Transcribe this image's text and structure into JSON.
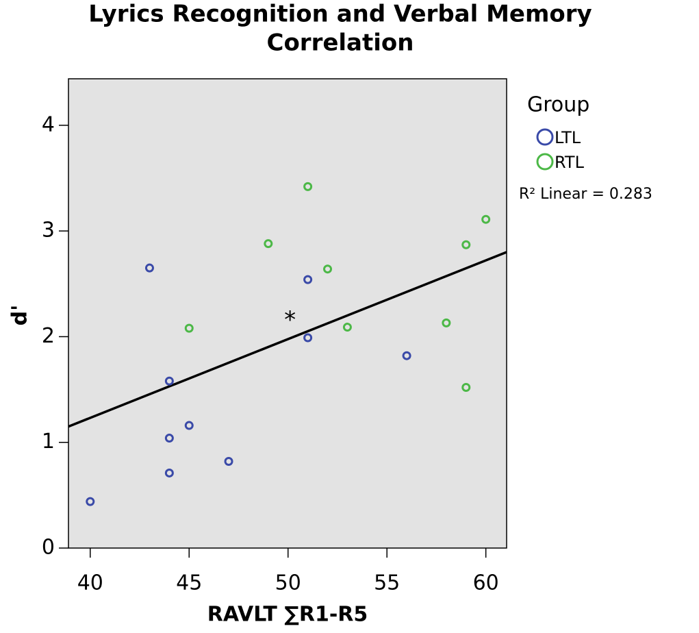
{
  "chart_data": {
    "type": "scatter",
    "title": [
      "Lyrics Recognition and Verbal Memory",
      "Correlation"
    ],
    "x_label": "RAVLT ∑R1-R5",
    "y_label": "d'",
    "xlim": [
      38.9,
      61.05
    ],
    "xticks": [
      40,
      45,
      50,
      55,
      60
    ],
    "ylim": [
      0,
      4.44
    ],
    "yticks": [
      0,
      1,
      2,
      3,
      4
    ],
    "legend_title": "Group",
    "series": [
      {
        "name": "LTL",
        "color": "#3a4aa8",
        "x": [
          40,
          43,
          44,
          44,
          44,
          45,
          47,
          51,
          51,
          56
        ],
        "values": [
          0.44,
          2.65,
          1.58,
          1.04,
          0.71,
          1.16,
          0.82,
          2.54,
          1.99,
          1.82
        ]
      },
      {
        "name": "RTL",
        "color": "#4cb847",
        "x": [
          45,
          49,
          51,
          52,
          53,
          58,
          59,
          59,
          60
        ],
        "values": [
          2.08,
          2.88,
          3.42,
          2.64,
          2.09,
          2.13,
          2.87,
          1.52,
          3.11
        ]
      }
    ],
    "fit_line": {
      "x": [
        38.9,
        61.05
      ],
      "y": [
        1.15,
        2.8
      ],
      "color": "#000000"
    },
    "fit_label": "R² Linear = 0.283",
    "annotations": [
      {
        "text": "*",
        "x": 50.1,
        "y": 2.2
      }
    ]
  }
}
